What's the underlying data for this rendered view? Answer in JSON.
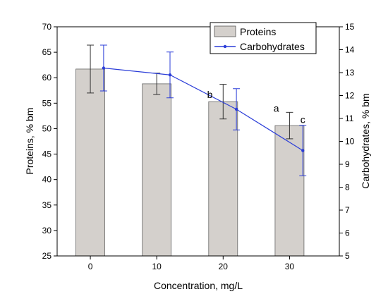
{
  "chart_data": {
    "type": "bar",
    "title": "",
    "xlabel": "Concentration, mg/L",
    "ylabel_left": "Proteins, % bm",
    "ylabel_right": "Carbohydrates, % bm",
    "categories": [
      "0",
      "10",
      "20",
      "30"
    ],
    "x_axis": {
      "ticks": [
        0,
        10,
        20,
        30
      ]
    },
    "y_left": {
      "range": [
        25,
        70
      ],
      "ticks": [
        25,
        30,
        35,
        40,
        45,
        50,
        55,
        60,
        65,
        70
      ]
    },
    "y_right": {
      "range": [
        5,
        15
      ],
      "ticks": [
        5,
        6,
        7,
        8,
        9,
        10,
        11,
        12,
        13,
        14,
        15
      ]
    },
    "grid": false,
    "legend": {
      "position": "top-right"
    },
    "series": [
      {
        "name": "Proteins",
        "kind": "bar",
        "axis": "left",
        "color": "#d4d0cc",
        "x": [
          0,
          10,
          20,
          30
        ],
        "values": [
          61.7,
          58.8,
          55.3,
          50.6
        ],
        "error": [
          4.7,
          2.1,
          3.4,
          2.6
        ]
      },
      {
        "name": "Carbohydrates",
        "kind": "line",
        "axis": "right",
        "color": "#2b3dd8",
        "x": [
          2,
          12,
          22,
          32
        ],
        "values": [
          13.2,
          12.9,
          11.4,
          9.6
        ],
        "error": [
          1.0,
          1.0,
          0.9,
          1.1
        ]
      }
    ],
    "annotations": [
      {
        "text": "b",
        "x": 18,
        "y": 11.9,
        "axis": "right"
      },
      {
        "text": "a",
        "x": 28,
        "y": 11.3,
        "axis": "right"
      },
      {
        "text": "c",
        "x": 32,
        "y": 10.8,
        "axis": "right"
      }
    ]
  }
}
